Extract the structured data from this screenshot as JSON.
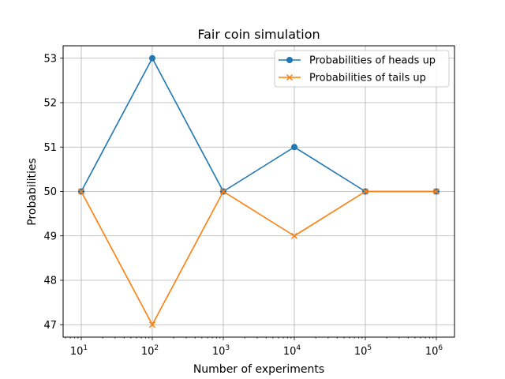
{
  "chart_data": {
    "type": "line",
    "title": "Fair coin simulation",
    "xlabel": "Number of experiments",
    "ylabel": "Probabilities",
    "xscale": "log",
    "x": [
      10,
      100,
      1000,
      10000,
      100000,
      1000000
    ],
    "x_tick_labels": [
      {
        "base": "10",
        "exp": "1"
      },
      {
        "base": "10",
        "exp": "2"
      },
      {
        "base": "10",
        "exp": "3"
      },
      {
        "base": "10",
        "exp": "4"
      },
      {
        "base": "10",
        "exp": "5"
      },
      {
        "base": "10",
        "exp": "6"
      }
    ],
    "y_ticks": [
      47,
      48,
      49,
      50,
      51,
      52,
      53
    ],
    "ylim": [
      46.72,
      53.28
    ],
    "grid": true,
    "legend_position": "top-right",
    "series": [
      {
        "name": "Probabilities of heads up",
        "color": "#1f77b4",
        "marker": "circle",
        "values": [
          50,
          53,
          50,
          51,
          50,
          50
        ]
      },
      {
        "name": "Probabilities of tails up",
        "color": "#ff7f0e",
        "marker": "x",
        "values": [
          50,
          47,
          50,
          49,
          50,
          50
        ]
      }
    ]
  }
}
